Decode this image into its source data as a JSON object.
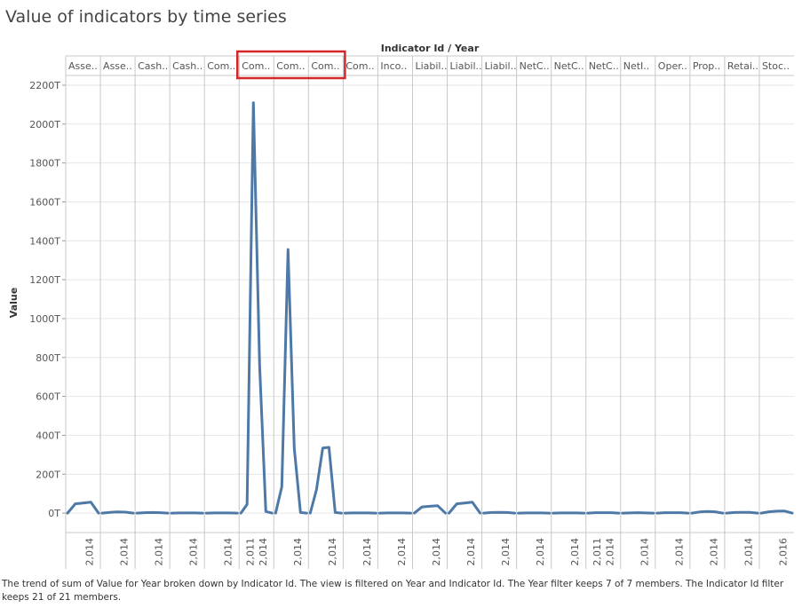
{
  "title": "Value of indicators by time series",
  "caption": "The trend of sum of Value for Year broken down by Indicator Id. The view is filtered on Year and Indicator Id. The Year filter keeps 7 of 7 members. The Indicator Id filter keeps 21 of 21 members.",
  "colors": {
    "line": "#4e79a7",
    "highlight": "#d62728",
    "grid": "#e6e6e6",
    "divider": "#c8c8c8"
  },
  "chart_data": {
    "type": "line",
    "header_title": "Indicator Id / Year",
    "ylabel": "Value",
    "ylim": [
      -100,
      2250
    ],
    "y_ticks": [
      "0T",
      "200T",
      "400T",
      "600T",
      "800T",
      "1000T",
      "1200T",
      "1400T",
      "1600T",
      "1800T",
      "2000T",
      "2200T"
    ],
    "y_tick_values": [
      0,
      200,
      400,
      600,
      800,
      1000,
      1200,
      1400,
      1600,
      1800,
      2000,
      2200
    ],
    "value_unit": "T",
    "highlighted_panels": [
      5,
      6,
      7
    ],
    "panels": [
      {
        "label": "Asse..",
        "year_label": "2,014",
        "values": [
          0,
          48,
          52,
          56,
          0
        ]
      },
      {
        "label": "Asse..",
        "year_label": "2,014",
        "values": [
          0,
          4,
          6,
          5,
          0
        ]
      },
      {
        "label": "Cash..",
        "year_label": "2,014",
        "values": [
          0,
          2,
          3,
          2,
          0
        ]
      },
      {
        "label": "Cash..",
        "year_label": "2,014",
        "values": [
          0,
          1,
          1,
          1,
          0
        ]
      },
      {
        "label": "Com..",
        "year_label": "2,014",
        "values": [
          0,
          1,
          1,
          1,
          0
        ]
      },
      {
        "label": "Com..",
        "year_labels": [
          "2,011",
          "2,014"
        ],
        "values": [
          0,
          45,
          2110,
          760,
          8,
          0
        ]
      },
      {
        "label": "Com..",
        "year_label": "2,014",
        "values": [
          0,
          135,
          1355,
          335,
          3,
          0
        ]
      },
      {
        "label": "Com..",
        "year_label": "2,014",
        "values": [
          0,
          120,
          335,
          338,
          3,
          0
        ]
      },
      {
        "label": "Com..",
        "year_label": "2,014",
        "values": [
          0,
          1,
          1,
          1,
          0
        ]
      },
      {
        "label": "Inco..",
        "year_label": "2,014",
        "values": [
          0,
          1,
          1,
          1,
          0
        ]
      },
      {
        "label": "Liabil..",
        "year_label": "2,014",
        "values": [
          0,
          32,
          35,
          38,
          0
        ]
      },
      {
        "label": "Liabil..",
        "year_label": "2,014",
        "values": [
          0,
          48,
          52,
          56,
          0
        ]
      },
      {
        "label": "Liabil..",
        "year_label": "2,014",
        "values": [
          0,
          3,
          4,
          3,
          0
        ]
      },
      {
        "label": "NetC..",
        "year_label": "2,014",
        "values": [
          0,
          1,
          1,
          1,
          0
        ]
      },
      {
        "label": "NetC..",
        "year_label": "2,014",
        "values": [
          0,
          1,
          1,
          1,
          0
        ]
      },
      {
        "label": "NetC..",
        "year_labels": [
          "2,011",
          "2,014"
        ],
        "values": [
          0,
          2,
          2,
          2,
          0
        ]
      },
      {
        "label": "NetI..",
        "year_label": "2,014",
        "values": [
          0,
          1,
          2,
          1,
          0
        ]
      },
      {
        "label": "Oper..",
        "year_label": "2,014",
        "values": [
          0,
          2,
          2,
          2,
          0
        ]
      },
      {
        "label": "Prop..",
        "year_label": "2,014",
        "values": [
          0,
          6,
          8,
          7,
          0
        ]
      },
      {
        "label": "Retai..",
        "year_label": "2,014",
        "values": [
          0,
          3,
          4,
          4,
          0
        ]
      },
      {
        "label": "Stoc..",
        "year_label": "2,016",
        "values": [
          0,
          7,
          10,
          11,
          0
        ]
      }
    ]
  }
}
